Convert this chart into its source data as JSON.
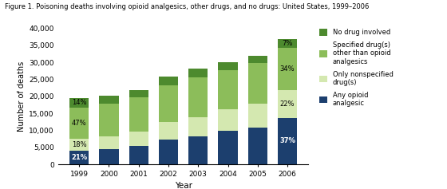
{
  "years": [
    "1999",
    "2000",
    "2001",
    "2002",
    "2003",
    "2004",
    "2005",
    "2006"
  ],
  "opioid": [
    4100,
    4500,
    5500,
    7300,
    8300,
    9900,
    10900,
    13700
  ],
  "nonspecified": [
    3500,
    3700,
    4200,
    5100,
    5600,
    6300,
    7000,
    8100
  ],
  "specified": [
    9200,
    9600,
    10000,
    10800,
    11600,
    11500,
    11800,
    12500
  ],
  "nodrug": [
    2700,
    2400,
    2200,
    2600,
    2600,
    2300,
    2200,
    2600
  ],
  "colors": {
    "opioid": "#1c3f6e",
    "nonspecified": "#d4e8b0",
    "specified": "#8cbd5a",
    "nodrug": "#4d8a2e"
  },
  "title": "Figure 1. Poisoning deaths involving opioid analgesics, other drugs, and no drugs: United States, 1999–2006",
  "xlabel": "Year",
  "ylabel": "Number of deaths",
  "ylim": [
    0,
    40000
  ],
  "yticks": [
    0,
    5000,
    10000,
    15000,
    20000,
    25000,
    30000,
    35000,
    40000
  ],
  "legend_labels": [
    "No drug involved",
    "Specified drug(s)\nother than opioid\nanalgesics",
    "Only nonspecified\ndrug(s)",
    "Any opioid\nanalgesic"
  ],
  "legend_colors": [
    "#4d8a2e",
    "#8cbd5a",
    "#d4e8b0",
    "#1c3f6e"
  ]
}
